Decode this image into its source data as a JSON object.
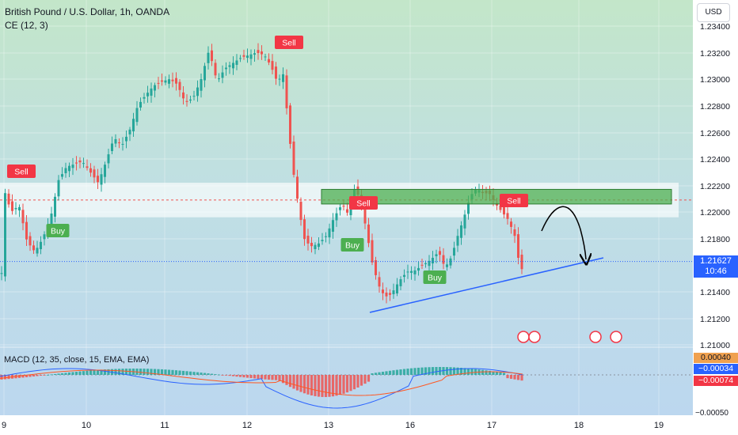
{
  "header": {
    "title": "British Pound / U.S. Dollar, 1h, OANDA",
    "indicator": "CE (12, 3)",
    "currency_button": "USD",
    "macd_label": "MACD (12, 35, close, 15, EMA, EMA)"
  },
  "colors": {
    "up": "#26a69a",
    "down": "#ef5350",
    "zone": "#4caf50",
    "trendline": "#2962ff",
    "sell_label": "#f23645",
    "buy_label": "#4caf50",
    "price_tag": "#2962ff",
    "macd_line": "#2962ff",
    "signal_line": "#ff5722"
  },
  "price_tag": {
    "price": "1.21627",
    "countdown": "10:46"
  },
  "macd_values": {
    "a": "0.00040",
    "b": "−0.00034",
    "c": "−0.00074"
  },
  "chart_data": {
    "type": "candlestick",
    "price_axis": {
      "ticks": [
        "1.23400",
        "1.23200",
        "1.23000",
        "1.22800",
        "1.22600",
        "1.22400",
        "1.22200",
        "1.22000",
        "1.21800",
        "1.21400",
        "1.21200",
        "1.21000"
      ],
      "ylim": [
        1.2097,
        1.2356
      ]
    },
    "time_axis": {
      "ticks": [
        "9",
        "10",
        "11",
        "12",
        "13",
        "16",
        "17",
        "18",
        "19"
      ]
    },
    "macd_axis": {
      "tick": "−0.00050"
    },
    "signals": [
      {
        "text": "Sell",
        "type": "sell"
      },
      {
        "text": "Buy",
        "type": "buy"
      },
      {
        "text": "Sell",
        "type": "sell"
      },
      {
        "text": "Sell",
        "type": "sell"
      },
      {
        "text": "Buy",
        "type": "buy"
      },
      {
        "text": "Buy",
        "type": "buy"
      },
      {
        "text": "Sell",
        "type": "sell"
      }
    ],
    "zone": {
      "top": 1.2217,
      "bottom": 1.2206
    },
    "resistance_band": {
      "top": 1.2222,
      "bottom": 1.2196
    },
    "resistance_line": 1.2209,
    "current_price": 1.21627
  }
}
